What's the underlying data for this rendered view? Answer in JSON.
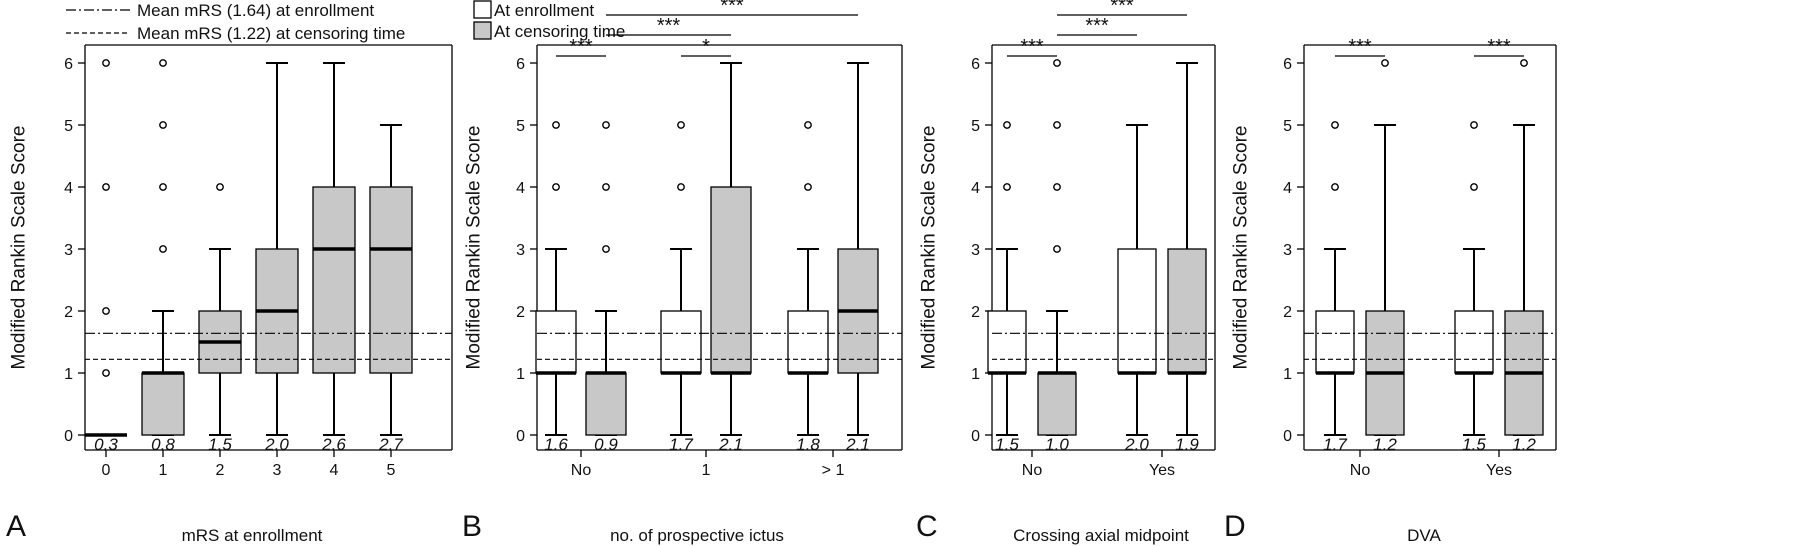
{
  "legend": {
    "enrollment_line": "Mean mRS (1.64) at enrollment",
    "censoring_line": "Mean mRS (1.22) at censoring time",
    "enrollment_box": "At enrollment",
    "censoring_box": "At censoring time"
  },
  "colors": {
    "enrollment": "#ffffff",
    "censoring": "#c8c8c8",
    "stroke": "#000000"
  },
  "chart_data": [
    {
      "type": "box",
      "letter": "A",
      "ylabel": "Modified Rankin Scale Score",
      "xlabel": "mRS at enrollment",
      "ylim": [
        0,
        6
      ],
      "yticks": [
        "0",
        "1",
        "2",
        "3",
        "4",
        "5",
        "6"
      ],
      "ref_lines": {
        "enrollment": 1.64,
        "censoring": 1.22
      },
      "categories": [
        "0",
        "1",
        "2",
        "3",
        "4",
        "5"
      ],
      "boxes": [
        {
          "cat": 0,
          "group": "censoring",
          "q1": 0,
          "median": 0,
          "q3": 0,
          "whisker_low": 0,
          "whisker_high": 0,
          "outliers": [
            1,
            2,
            4,
            6
          ],
          "mean_label": "0.3"
        },
        {
          "cat": 1,
          "group": "censoring",
          "q1": 0,
          "median": 1,
          "q3": 1,
          "whisker_low": 0,
          "whisker_high": 2,
          "outliers": [
            3,
            4,
            5,
            6
          ],
          "mean_label": "0.8"
        },
        {
          "cat": 2,
          "group": "censoring",
          "q1": 1,
          "median": 1.5,
          "q3": 2,
          "whisker_low": 0,
          "whisker_high": 3,
          "outliers": [
            4
          ],
          "mean_label": "1.5"
        },
        {
          "cat": 3,
          "group": "censoring",
          "q1": 1,
          "median": 2,
          "q3": 3,
          "whisker_low": 0,
          "whisker_high": 6,
          "outliers": [],
          "mean_label": "2.0"
        },
        {
          "cat": 4,
          "group": "censoring",
          "q1": 1,
          "median": 3,
          "q3": 4,
          "whisker_low": 0,
          "whisker_high": 6,
          "outliers": [],
          "mean_label": "2.6"
        },
        {
          "cat": 5,
          "group": "censoring",
          "q1": 1,
          "median": 3,
          "q3": 4,
          "whisker_low": 0,
          "whisker_high": 5,
          "outliers": [],
          "mean_label": "2.7"
        }
      ],
      "significance": []
    },
    {
      "type": "box",
      "letter": "B",
      "ylabel": "Modified Rankin Scale Score",
      "xlabel": "no. of prospective ictus",
      "ylim": [
        0,
        6
      ],
      "yticks": [
        "0",
        "1",
        "2",
        "3",
        "4",
        "5",
        "6"
      ],
      "ref_lines": {
        "enrollment": 1.64,
        "censoring": 1.22
      },
      "categories": [
        "No",
        "1",
        "> 1"
      ],
      "boxes": [
        {
          "cat": 0,
          "group": "enrollment",
          "q1": 1,
          "median": 1,
          "q3": 2,
          "whisker_low": 0,
          "whisker_high": 3,
          "outliers": [
            4,
            5
          ],
          "mean_label": "1.6"
        },
        {
          "cat": 0,
          "group": "censoring",
          "q1": 0,
          "median": 1,
          "q3": 1,
          "whisker_low": 0,
          "whisker_high": 2,
          "outliers": [
            3,
            4,
            5
          ],
          "mean_label": "0.9"
        },
        {
          "cat": 1,
          "group": "enrollment",
          "q1": 1,
          "median": 1,
          "q3": 2,
          "whisker_low": 0,
          "whisker_high": 3,
          "outliers": [
            4,
            5
          ],
          "mean_label": "1.7"
        },
        {
          "cat": 1,
          "group": "censoring",
          "q1": 1,
          "median": 1,
          "q3": 4,
          "whisker_low": 0,
          "whisker_high": 6,
          "outliers": [],
          "mean_label": "2.1"
        },
        {
          "cat": 2,
          "group": "enrollment",
          "q1": 1,
          "median": 1,
          "q3": 2,
          "whisker_low": 0,
          "whisker_high": 3,
          "outliers": [
            4,
            5
          ],
          "mean_label": "1.8"
        },
        {
          "cat": 2,
          "group": "censoring",
          "q1": 1,
          "median": 2,
          "q3": 3,
          "whisker_low": 0,
          "whisker_high": 6,
          "outliers": [],
          "mean_label": "2.1"
        }
      ],
      "significance": [
        {
          "from": [
            0,
            "enrollment"
          ],
          "to": [
            0,
            "censoring"
          ],
          "level": 0,
          "label": "***"
        },
        {
          "from": [
            1,
            "enrollment"
          ],
          "to": [
            1,
            "censoring"
          ],
          "level": 0,
          "label": "*"
        },
        {
          "from": [
            0,
            "censoring"
          ],
          "to": [
            1,
            "censoring"
          ],
          "level": 1,
          "label": "***"
        },
        {
          "from": [
            0,
            "censoring"
          ],
          "to": [
            2,
            "censoring"
          ],
          "level": 2,
          "label": "***"
        }
      ]
    },
    {
      "type": "box",
      "letter": "C",
      "ylabel": "Modified Rankin Scale Score",
      "xlabel": "Crossing axial midpoint",
      "ylim": [
        0,
        6
      ],
      "yticks": [
        "0",
        "1",
        "2",
        "3",
        "4",
        "5",
        "6"
      ],
      "ref_lines": {
        "enrollment": 1.64,
        "censoring": 1.22
      },
      "categories": [
        "No",
        "Yes"
      ],
      "boxes": [
        {
          "cat": 0,
          "group": "enrollment",
          "q1": 1,
          "median": 1,
          "q3": 2,
          "whisker_low": 0,
          "whisker_high": 3,
          "outliers": [
            4,
            5
          ],
          "mean_label": "1.5"
        },
        {
          "cat": 0,
          "group": "censoring",
          "q1": 0,
          "median": 1,
          "q3": 1,
          "whisker_low": 0,
          "whisker_high": 2,
          "outliers": [
            3,
            4,
            5,
            6
          ],
          "mean_label": "1.0"
        },
        {
          "cat": 1,
          "group": "enrollment",
          "q1": 1,
          "median": 1,
          "q3": 3,
          "whisker_low": 0,
          "whisker_high": 5,
          "outliers": [],
          "mean_label": "2.0"
        },
        {
          "cat": 1,
          "group": "censoring",
          "q1": 1,
          "median": 1,
          "q3": 3,
          "whisker_low": 0,
          "whisker_high": 6,
          "outliers": [],
          "mean_label": "1.9"
        }
      ],
      "significance": [
        {
          "from": [
            0,
            "enrollment"
          ],
          "to": [
            0,
            "censoring"
          ],
          "level": 0,
          "label": "***"
        },
        {
          "from": [
            0,
            "censoring"
          ],
          "to": [
            1,
            "enrollment"
          ],
          "level": 1,
          "label": "***"
        },
        {
          "from": [
            0,
            "censoring"
          ],
          "to": [
            1,
            "censoring"
          ],
          "level": 2,
          "label": "***"
        }
      ]
    },
    {
      "type": "box",
      "letter": "D",
      "ylabel": "Modified Rankin Scale Score",
      "xlabel": "DVA",
      "ylim": [
        0,
        6
      ],
      "yticks": [
        "0",
        "1",
        "2",
        "3",
        "4",
        "5",
        "6"
      ],
      "ref_lines": {
        "enrollment": 1.64,
        "censoring": 1.22
      },
      "categories": [
        "No",
        "Yes"
      ],
      "boxes": [
        {
          "cat": 0,
          "group": "enrollment",
          "q1": 1,
          "median": 1,
          "q3": 2,
          "whisker_low": 0,
          "whisker_high": 3,
          "outliers": [
            4,
            5
          ],
          "mean_label": "1.7"
        },
        {
          "cat": 0,
          "group": "censoring",
          "q1": 0,
          "median": 1,
          "q3": 2,
          "whisker_low": 0,
          "whisker_high": 5,
          "outliers": [
            6
          ],
          "mean_label": "1.2"
        },
        {
          "cat": 1,
          "group": "enrollment",
          "q1": 1,
          "median": 1,
          "q3": 2,
          "whisker_low": 0,
          "whisker_high": 3,
          "outliers": [
            4,
            5
          ],
          "mean_label": "1.5"
        },
        {
          "cat": 1,
          "group": "censoring",
          "q1": 0,
          "median": 1,
          "q3": 2,
          "whisker_low": 0,
          "whisker_high": 5,
          "outliers": [
            6
          ],
          "mean_label": "1.2"
        }
      ],
      "significance": [
        {
          "from": [
            0,
            "enrollment"
          ],
          "to": [
            0,
            "censoring"
          ],
          "level": 0,
          "label": "***"
        },
        {
          "from": [
            1,
            "enrollment"
          ],
          "to": [
            1,
            "censoring"
          ],
          "level": 0,
          "label": "***"
        }
      ]
    }
  ]
}
